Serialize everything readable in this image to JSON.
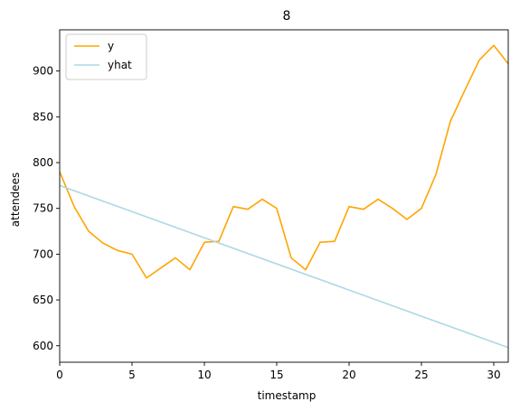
{
  "chart_data": {
    "type": "line",
    "title": "8",
    "xlabel": "timestamp",
    "ylabel": "attendees",
    "xlim": [
      0,
      31
    ],
    "ylim": [
      582,
      945
    ],
    "xticks": [
      0,
      5,
      10,
      15,
      20,
      25,
      30
    ],
    "yticks": [
      600,
      650,
      700,
      750,
      800,
      850,
      900
    ],
    "grid": false,
    "legend_position": "top-left",
    "series": [
      {
        "name": "y",
        "color": "#ffa500",
        "x": [
          0,
          1,
          2,
          3,
          4,
          5,
          6,
          7,
          8,
          9,
          10,
          11,
          12,
          13,
          14,
          15,
          16,
          17,
          18,
          19,
          20,
          21,
          22,
          23,
          24,
          25,
          26,
          27,
          28,
          29,
          30,
          31
        ],
        "values": [
          790,
          752,
          725,
          712,
          704,
          700,
          674,
          685,
          696,
          683,
          713,
          714,
          752,
          749,
          760,
          750,
          696,
          683,
          713,
          714,
          752,
          749,
          760,
          750,
          738,
          750,
          787,
          845,
          879,
          912,
          928,
          908
        ]
      },
      {
        "name": "yhat",
        "color": "#add8e6",
        "x": [
          0,
          31
        ],
        "values": [
          775,
          598
        ]
      }
    ]
  }
}
